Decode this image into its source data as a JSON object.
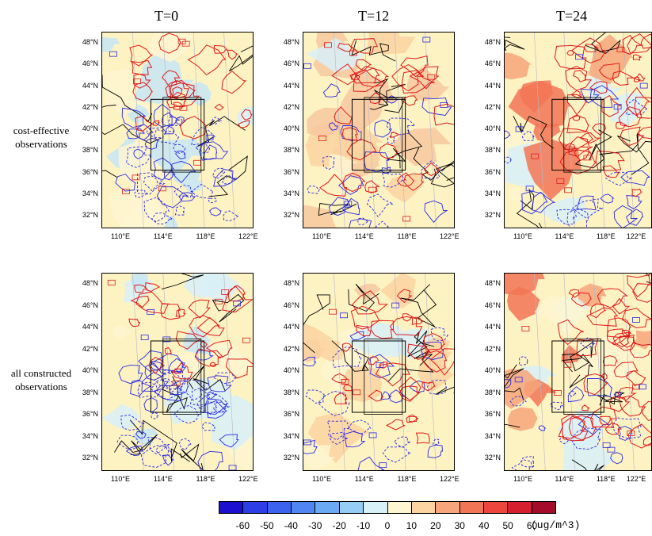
{
  "columns": [
    {
      "title": "T=0"
    },
    {
      "title": "T=12"
    },
    {
      "title": "T=24"
    }
  ],
  "rows": [
    {
      "label_line1": "cost-effective",
      "label_line2": "observations"
    },
    {
      "label_line1": "all constructed",
      "label_line2": "observations"
    }
  ],
  "latitude_labels": [
    "48°N",
    "46°N",
    "44°N",
    "42°N",
    "40°N",
    "38°N",
    "36°N",
    "34°N",
    "32°N"
  ],
  "longitude_labels": [
    "110°E",
    "114°E",
    "118°E",
    "122°E"
  ],
  "colorbar": {
    "ticks": [
      "-60",
      "-50",
      "-40",
      "-30",
      "-20",
      "-10",
      "0",
      "10",
      "20",
      "30",
      "40",
      "50",
      "60"
    ],
    "unit": "(ug/m^3)",
    "colors": [
      "#1c0fd0",
      "#2e3ee6",
      "#3c63ee",
      "#4f86f0",
      "#6aa9f3",
      "#95cdf5",
      "#d8f0f8",
      "#fef6d0",
      "#fbd4a1",
      "#f7a57a",
      "#f27556",
      "#ec463d",
      "#d51e2e",
      "#a40d2a"
    ]
  },
  "colors": {
    "negative_contour": "#2a2ae6",
    "positive_contour": "#e11a1a",
    "background_land": "#fdf2c2",
    "box_line": "#000000"
  }
}
